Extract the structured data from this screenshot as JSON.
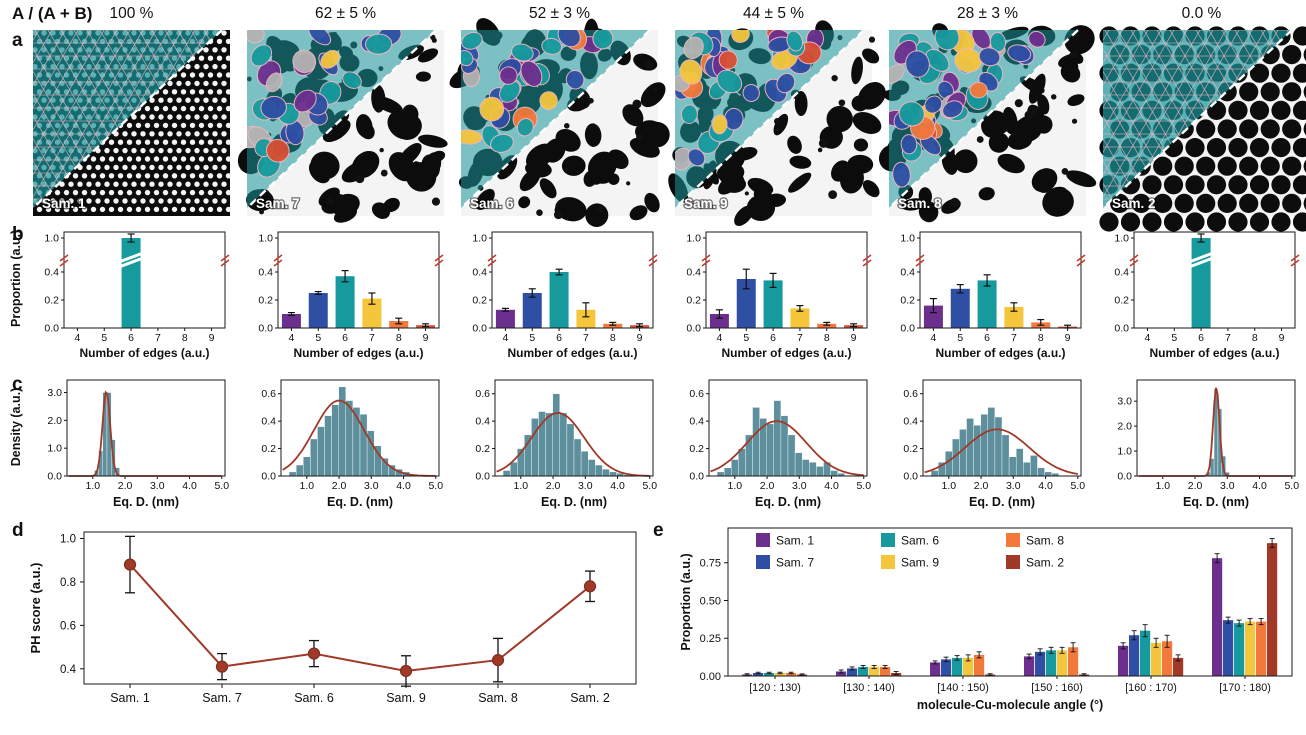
{
  "figure": {
    "header": {
      "ratio_label": "A / (A + B)",
      "percentages": [
        "100 %",
        "62 ± 5 %",
        "52 ± 3 %",
        "44 ± 5 %",
        "28 ± 3 %",
        "0.0 %"
      ]
    },
    "panel_labels": [
      "a",
      "b",
      "c",
      "d",
      "e"
    ],
    "samples": [
      "Sam. 1",
      "Sam. 7",
      "Sam. 6",
      "Sam. 9",
      "Sam. 8",
      "Sam. 2"
    ],
    "palette": {
      "edge4_purple": "#6d2f8e",
      "edge5_blue": "#2e4fa3",
      "edge6_teal": "#179a9e",
      "edge7_yellow": "#f5c63c",
      "edge8_orange": "#f2793b",
      "edge9_red": "#d94f33",
      "dark_red": "#a03928",
      "histogram_blue": "#5e8f9c",
      "overlay_gray": "#b3b3b3",
      "overlay_edge_pink": "#efb6c2",
      "break_mark_red": "#c0392b"
    }
  },
  "chart_data": {
    "edges": {
      "type": "bar",
      "xlabel": "Number of edges (a.u.)",
      "ylabel": "Proportion (a.u.)",
      "categories": [
        4,
        5,
        6,
        7,
        8,
        9
      ],
      "yticks": [
        "0.0",
        "0.2",
        "0.4",
        "1.0"
      ],
      "broken_axis": true,
      "bar_colors": [
        "#6d2f8e",
        "#2e4fa3",
        "#179a9e",
        "#f5c63c",
        "#f2793b",
        "#d94f33"
      ],
      "per_sample": [
        {
          "sample": "Sam. 1",
          "values": [
            0,
            0,
            0.99,
            0,
            0,
            0
          ],
          "errors": [
            0,
            0,
            0.01,
            0,
            0,
            0
          ]
        },
        {
          "sample": "Sam. 7",
          "values": [
            0.1,
            0.25,
            0.37,
            0.21,
            0.05,
            0.02
          ],
          "errors": [
            0.01,
            0.01,
            0.04,
            0.04,
            0.02,
            0.01
          ]
        },
        {
          "sample": "Sam. 6",
          "values": [
            0.13,
            0.25,
            0.4,
            0.13,
            0.03,
            0.02
          ],
          "errors": [
            0.01,
            0.03,
            0.02,
            0.05,
            0.01,
            0.01
          ]
        },
        {
          "sample": "Sam. 9",
          "values": [
            0.1,
            0.35,
            0.34,
            0.14,
            0.03,
            0.02
          ],
          "errors": [
            0.03,
            0.07,
            0.05,
            0.02,
            0.01,
            0.01
          ]
        },
        {
          "sample": "Sam. 8",
          "values": [
            0.16,
            0.28,
            0.34,
            0.15,
            0.04,
            0.01
          ],
          "errors": [
            0.05,
            0.03,
            0.04,
            0.03,
            0.02,
            0.01
          ]
        },
        {
          "sample": "Sam. 2",
          "values": [
            0,
            0,
            0.99,
            0,
            0,
            0
          ],
          "errors": [
            0,
            0,
            0.01,
            0,
            0,
            0
          ]
        }
      ]
    },
    "density": {
      "type": "histogram",
      "xlabel": "Eq. D. (nm)",
      "ylabel": "Density (a.u.)",
      "xticks": [
        "1.0",
        "2.0",
        "3.0",
        "4.0",
        "5.0"
      ],
      "per_sample": [
        {
          "sample": "Sam. 1",
          "ymax": 3.45,
          "yticks": [
            0,
            1,
            2,
            3
          ],
          "ytick_labels": [
            "0.0",
            "1.0",
            "2.0",
            "3.0"
          ],
          "bin_start": 1.05,
          "bin_width": 0.13,
          "values": [
            0.2,
            0.9,
            3.0,
            3.0,
            1.3,
            0.3
          ],
          "fit": {
            "mean": 1.42,
            "sigma": 0.12,
            "amp": 3.05
          }
        },
        {
          "sample": "Sam. 7",
          "ymax": 0.7,
          "yticks": [
            0,
            0.2,
            0.4,
            0.6
          ],
          "ytick_labels": [
            "0.0",
            "0.2",
            "0.4",
            "0.6"
          ],
          "bin_start": 0.45,
          "bin_width": 0.22,
          "values": [
            0.03,
            0.08,
            0.14,
            0.27,
            0.36,
            0.44,
            0.52,
            0.65,
            0.55,
            0.5,
            0.45,
            0.33,
            0.22,
            0.13,
            0.08,
            0.05,
            0.03,
            0.01
          ],
          "fit": {
            "mean": 2.0,
            "sigma": 0.78,
            "amp": 0.55
          }
        },
        {
          "sample": "Sam. 6",
          "ymax": 0.7,
          "yticks": [
            0,
            0.2,
            0.4,
            0.6
          ],
          "ytick_labels": [
            "0.0",
            "0.2",
            "0.4",
            "0.6"
          ],
          "bin_start": 0.45,
          "bin_width": 0.22,
          "values": [
            0.04,
            0.1,
            0.2,
            0.3,
            0.42,
            0.47,
            0.46,
            0.6,
            0.46,
            0.38,
            0.27,
            0.18,
            0.12,
            0.08,
            0.05,
            0.03,
            0.02,
            0.01
          ],
          "fit": {
            "mean": 2.15,
            "sigma": 0.82,
            "amp": 0.46
          }
        },
        {
          "sample": "Sam. 9",
          "ymax": 0.7,
          "yticks": [
            0,
            0.2,
            0.4,
            0.6
          ],
          "ytick_labels": [
            "0.0",
            "0.2",
            "0.4",
            "0.6"
          ],
          "bin_start": 0.45,
          "bin_width": 0.22,
          "values": [
            0.03,
            0.06,
            0.12,
            0.2,
            0.3,
            0.5,
            0.42,
            0.38,
            0.55,
            0.44,
            0.3,
            0.17,
            0.12,
            0.1,
            0.07,
            0.1,
            0.04,
            0.02
          ],
          "fit": {
            "mean": 2.3,
            "sigma": 0.92,
            "amp": 0.4
          }
        },
        {
          "sample": "Sam. 8",
          "ymax": 0.7,
          "yticks": [
            0,
            0.2,
            0.4,
            0.6
          ],
          "ytick_labels": [
            "0.0",
            "0.2",
            "0.4",
            "0.6"
          ],
          "bin_start": 0.45,
          "bin_width": 0.22,
          "values": [
            0.04,
            0.1,
            0.18,
            0.27,
            0.34,
            0.42,
            0.37,
            0.45,
            0.5,
            0.43,
            0.3,
            0.14,
            0.2,
            0.1,
            0.15,
            0.06,
            0.03,
            0.02
          ],
          "fit": {
            "mean": 2.5,
            "sigma": 1.0,
            "amp": 0.34
          }
        },
        {
          "sample": "Sam. 2",
          "ymax": 3.85,
          "yticks": [
            0,
            1,
            2,
            3
          ],
          "ytick_labels": [
            "0.0",
            "1.0",
            "2.0",
            "3.0"
          ],
          "bin_start": 2.35,
          "bin_width": 0.12,
          "values": [
            0.15,
            0.7,
            3.5,
            2.7,
            0.8,
            0.15
          ],
          "fit": {
            "mean": 2.66,
            "sigma": 0.1,
            "amp": 3.55
          }
        }
      ]
    },
    "ph_score": {
      "type": "line",
      "ylabel": "PH score (a.u.)",
      "categories": [
        "Sam. 1",
        "Sam. 7",
        "Sam. 6",
        "Sam. 9",
        "Sam. 8",
        "Sam. 2"
      ],
      "values": [
        0.88,
        0.41,
        0.47,
        0.39,
        0.44,
        0.78
      ],
      "errors": [
        0.13,
        0.06,
        0.06,
        0.07,
        0.1,
        0.07
      ],
      "yticks": [
        "0.4",
        "0.6",
        "0.8",
        "1.0"
      ],
      "ytick_values": [
        0.4,
        0.6,
        0.8,
        1.0
      ],
      "line_color": "#a03928"
    },
    "angles": {
      "type": "grouped-bar",
      "xlabel": "molecule-Cu-molecule  angle (°)",
      "ylabel": "Proportion (a.u.)",
      "bins": [
        "[120 : 130)",
        "[130 : 140)",
        "[140 : 150)",
        "[150 : 160)",
        "[160 : 170)",
        "[170 : 180)"
      ],
      "yticks": [
        "0.00",
        "0.25",
        "0.50",
        "0.75"
      ],
      "ytick_values": [
        0,
        0.25,
        0.5,
        0.75
      ],
      "series": [
        {
          "name": "Sam. 1",
          "color": "#6d2f8e",
          "values": [
            0.01,
            0.03,
            0.09,
            0.13,
            0.2,
            0.78
          ],
          "errors": [
            0.005,
            0.01,
            0.01,
            0.015,
            0.02,
            0.03
          ]
        },
        {
          "name": "Sam. 7",
          "color": "#2e4fa3",
          "values": [
            0.02,
            0.05,
            0.11,
            0.16,
            0.27,
            0.37
          ],
          "errors": [
            0.005,
            0.01,
            0.015,
            0.02,
            0.03,
            0.02
          ]
        },
        {
          "name": "Sam. 6",
          "color": "#179a9e",
          "values": [
            0.02,
            0.06,
            0.12,
            0.17,
            0.3,
            0.35
          ],
          "errors": [
            0.005,
            0.01,
            0.015,
            0.02,
            0.04,
            0.02
          ]
        },
        {
          "name": "Sam. 9",
          "color": "#f5c63c",
          "values": [
            0.02,
            0.06,
            0.12,
            0.17,
            0.22,
            0.36
          ],
          "errors": [
            0.005,
            0.01,
            0.02,
            0.02,
            0.03,
            0.02
          ]
        },
        {
          "name": "Sam. 8",
          "color": "#f2793b",
          "values": [
            0.02,
            0.06,
            0.14,
            0.19,
            0.23,
            0.36
          ],
          "errors": [
            0.005,
            0.01,
            0.02,
            0.03,
            0.04,
            0.02
          ]
        },
        {
          "name": "Sam. 2",
          "color": "#a03928",
          "values": [
            0.01,
            0.02,
            0.01,
            0.01,
            0.12,
            0.88
          ],
          "errors": [
            0.004,
            0.01,
            0.005,
            0.005,
            0.02,
            0.03
          ]
        }
      ],
      "legend_columns": [
        [
          "Sam. 1",
          "Sam. 7"
        ],
        [
          "Sam. 6",
          "Sam. 9"
        ],
        [
          "Sam. 8",
          "Sam. 2"
        ]
      ]
    }
  }
}
